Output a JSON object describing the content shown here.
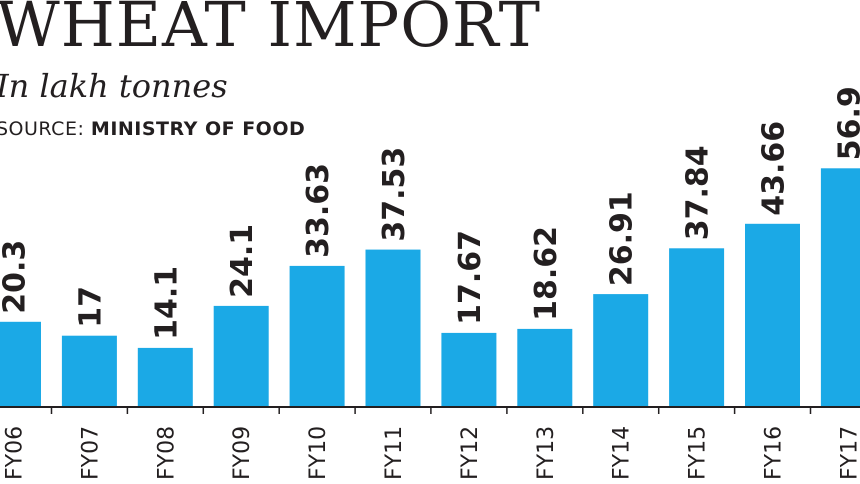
{
  "header": {
    "title": "WHEAT IMPORT",
    "subtitle": "In lakh tonnes",
    "source_label": "SOURCE:",
    "source_value": "MINISTRY OF FOOD"
  },
  "chart_data": {
    "type": "bar",
    "title": "WHEAT IMPORT",
    "subtitle": "In lakh tonnes",
    "source": "SOURCE: MINISTRY OF FOOD",
    "categories": [
      "FY06",
      "FY07",
      "FY08",
      "FY09",
      "FY10",
      "FY11",
      "FY12",
      "FY13",
      "FY14",
      "FY15",
      "FY16",
      "FY17"
    ],
    "values": [
      20.3,
      17,
      14.1,
      24.1,
      33.63,
      37.53,
      17.67,
      18.62,
      26.91,
      37.84,
      43.66,
      56.9
    ],
    "value_labels": [
      "20.3",
      "17",
      "14.1",
      "24.1",
      "33.63",
      "37.53",
      "17.67",
      "18.62",
      "26.91",
      "37.84",
      "43.66",
      "56.9"
    ],
    "bar_color": "#1ba9e6",
    "axis_color": "#231f20",
    "xlabel": "",
    "ylabel": "",
    "ylim": [
      0,
      60
    ],
    "grid": false,
    "legend": "none"
  }
}
